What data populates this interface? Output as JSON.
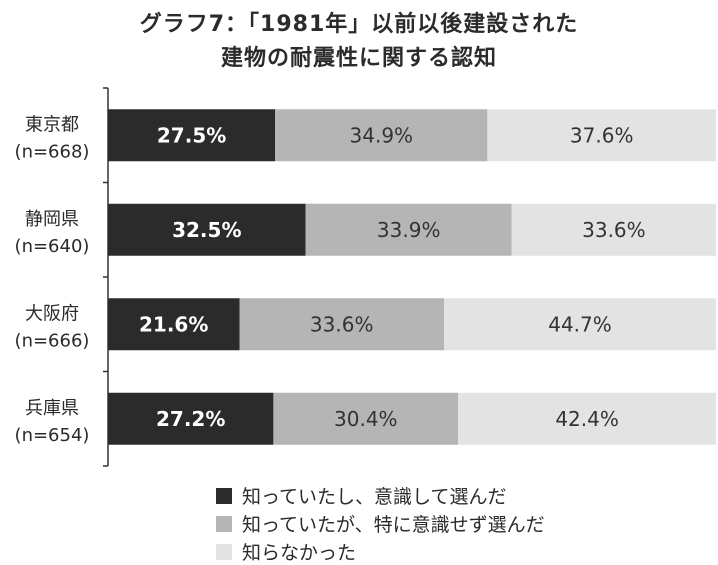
{
  "title": {
    "line1": "グラフ7：「1981年」以前以後建設された",
    "line2": "建物の耐震性に関する認知"
  },
  "colors": {
    "series1": "#2b2b2b",
    "series2": "#b5b5b5",
    "series3": "#e3e3e3",
    "axis": "#333333"
  },
  "chart_data": {
    "type": "bar",
    "orientation": "horizontal",
    "stacked": "100%",
    "categories": [
      "東京都\n(n=668)",
      "静岡県\n(n=640)",
      "大阪府\n(n=666)",
      "兵庫県\n(n=654)"
    ],
    "category_names": [
      "東京都",
      "静岡県",
      "大阪府",
      "兵庫県"
    ],
    "category_counts": [
      "(n=668)",
      "(n=640)",
      "(n=666)",
      "(n=654)"
    ],
    "series": [
      {
        "name": "知っていたし、意識して選んだ",
        "values": [
          27.5,
          32.5,
          21.6,
          27.2
        ],
        "labels": [
          "27.5%",
          "32.5%",
          "21.6%",
          "27.2%"
        ]
      },
      {
        "name": "知っていたが、特に意識せず選んだ",
        "values": [
          34.9,
          33.9,
          33.6,
          30.4
        ],
        "labels": [
          "34.9%",
          "33.9%",
          "33.6%",
          "30.4%"
        ]
      },
      {
        "name": "知らなかった",
        "values": [
          37.6,
          33.6,
          44.7,
          42.4
        ],
        "labels": [
          "37.6%",
          "33.6%",
          "44.7%",
          "42.4%"
        ]
      }
    ],
    "xlim": [
      0,
      100
    ],
    "grid": false,
    "legend_position": "bottom"
  }
}
